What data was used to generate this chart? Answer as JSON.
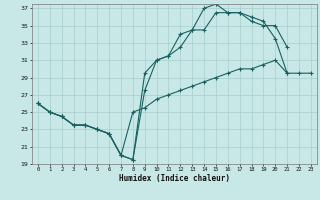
{
  "bg_color": "#c8e8e8",
  "grid_color": "#a8cccc",
  "line_color": "#1a6060",
  "xlabel": "Humidex (Indice chaleur)",
  "xlim": [
    -0.5,
    23.5
  ],
  "ylim": [
    19,
    37.5
  ],
  "xticks": [
    0,
    1,
    2,
    3,
    4,
    5,
    6,
    7,
    8,
    9,
    10,
    11,
    12,
    13,
    14,
    15,
    16,
    17,
    18,
    19,
    20,
    21,
    22,
    23
  ],
  "yticks": [
    19,
    21,
    23,
    25,
    27,
    29,
    31,
    33,
    35,
    37
  ],
  "line1_x": [
    0,
    1,
    2,
    3,
    4,
    5,
    6,
    7,
    8,
    9,
    10,
    11,
    12,
    13,
    14,
    15,
    16,
    17,
    18,
    19,
    20,
    21
  ],
  "line1_y": [
    26,
    25,
    24.5,
    23.5,
    23.5,
    23,
    22.5,
    20,
    19.5,
    27.5,
    31,
    31.5,
    34,
    34.5,
    37,
    37.5,
    36.5,
    36.5,
    36,
    35.5,
    33.5,
    29.5
  ],
  "line2_x": [
    0,
    1,
    2,
    3,
    4,
    5,
    6,
    7,
    8,
    9,
    10,
    11,
    12,
    13,
    14,
    15,
    16,
    17,
    18,
    19,
    20,
    21
  ],
  "line2_y": [
    26,
    25,
    24.5,
    23.5,
    23.5,
    23,
    22.5,
    20,
    19.5,
    29.5,
    31,
    31.5,
    32.5,
    34.5,
    34.5,
    36.5,
    36.5,
    36.5,
    35.5,
    35,
    35,
    32.5
  ],
  "line3_x": [
    0,
    1,
    2,
    3,
    4,
    5,
    6,
    7,
    8,
    9,
    10,
    11,
    12,
    13,
    14,
    15,
    16,
    17,
    18,
    19,
    20,
    21,
    22,
    23
  ],
  "line3_y": [
    26,
    25,
    24.5,
    23.5,
    23.5,
    23,
    22.5,
    20,
    25.0,
    25.5,
    26.5,
    27.0,
    27.5,
    28.0,
    28.5,
    29.0,
    29.5,
    30.0,
    30.0,
    30.5,
    31.0,
    29.5,
    29.5,
    29.5
  ]
}
